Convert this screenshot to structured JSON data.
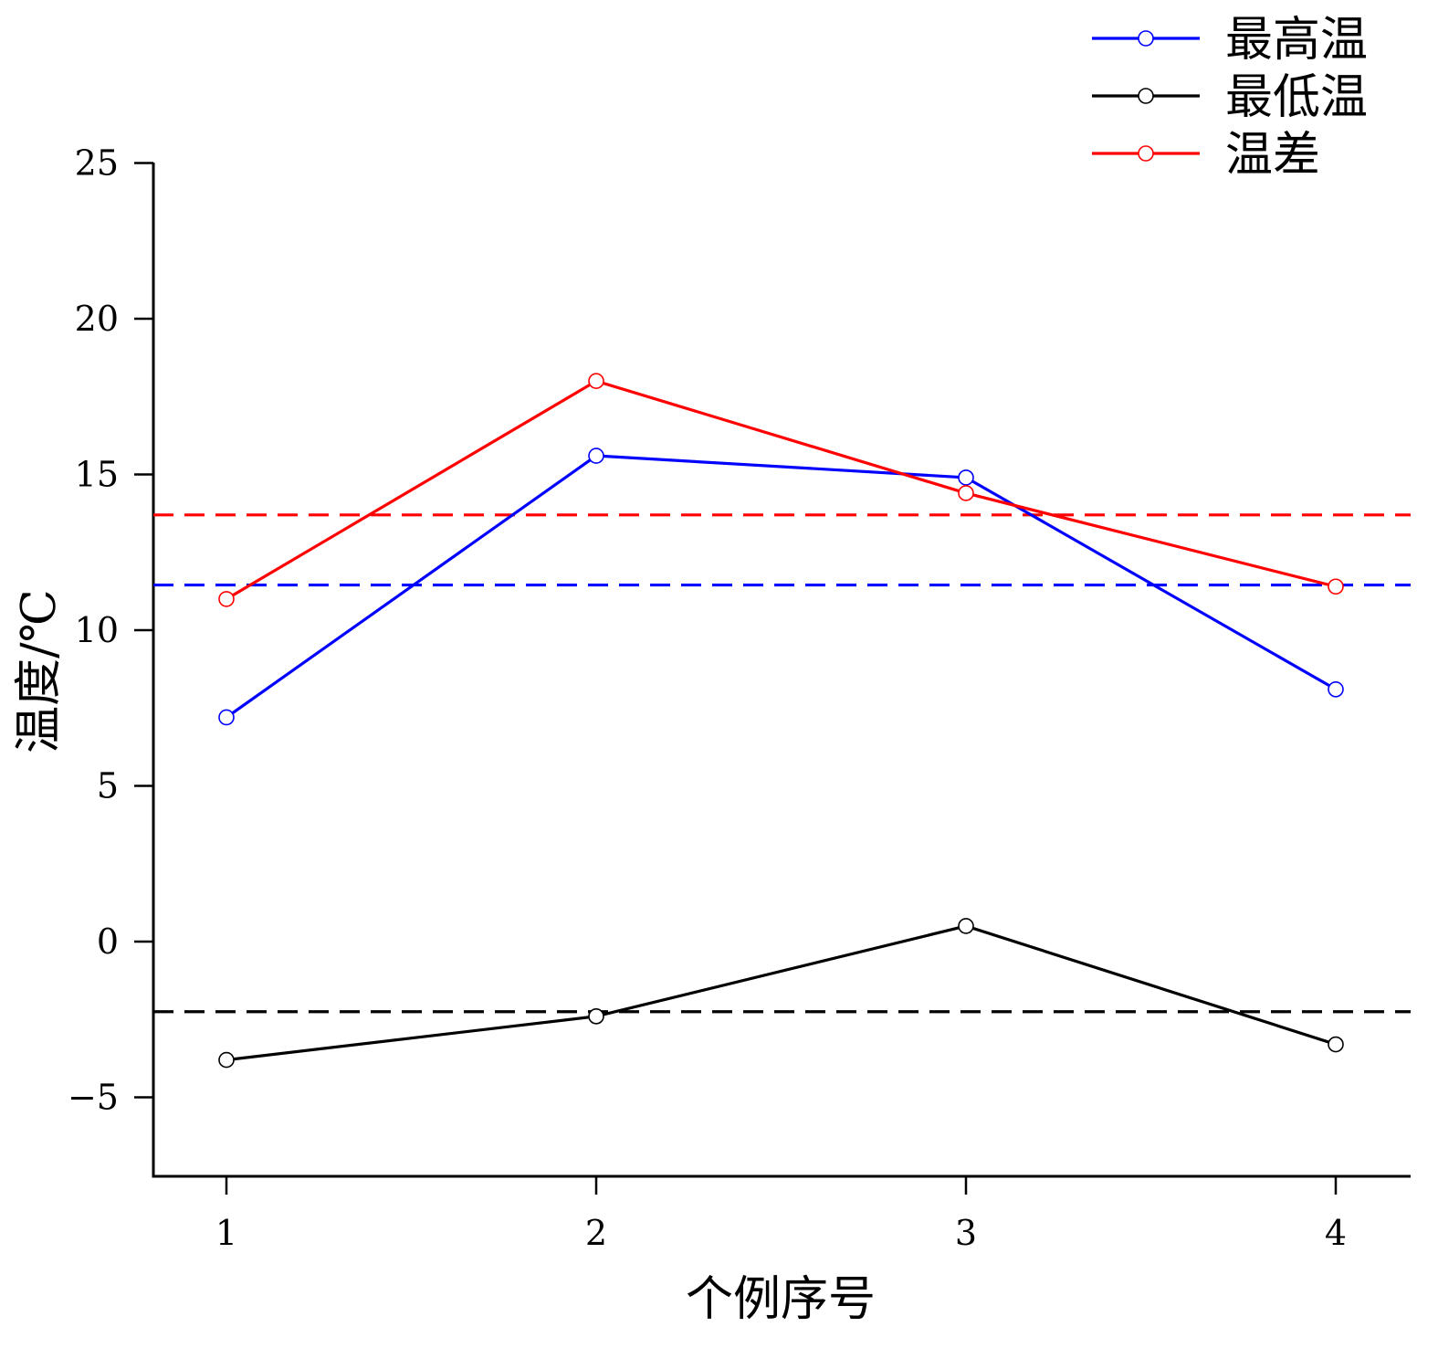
{
  "chart_data": {
    "type": "line",
    "x": [
      1,
      2,
      3,
      4
    ],
    "xlabel": "个例序号",
    "ylabel": "温度/℃",
    "xlim": [
      0.8,
      4.2
    ],
    "ylim": [
      -7.5,
      25
    ],
    "xticks": [
      "1",
      "2",
      "3",
      "4"
    ],
    "yticks": [
      -5,
      0,
      5,
      10,
      15,
      20,
      25
    ],
    "ytick_labels": [
      "−5",
      "0",
      "5",
      "10",
      "15",
      "20",
      "25"
    ],
    "legend_position": "top-right",
    "grid": false,
    "series": [
      {
        "name": "最高温",
        "color": "#0000ff",
        "values": [
          7.2,
          15.6,
          14.9,
          8.1
        ],
        "mean": 11.45
      },
      {
        "name": "最低温",
        "color": "#000000",
        "values": [
          -3.8,
          -2.4,
          0.5,
          -3.3
        ],
        "mean": -2.25
      },
      {
        "name": "温差",
        "color": "#ff0000",
        "values": [
          11.0,
          18.0,
          14.4,
          11.4
        ],
        "mean": 13.7
      }
    ]
  }
}
